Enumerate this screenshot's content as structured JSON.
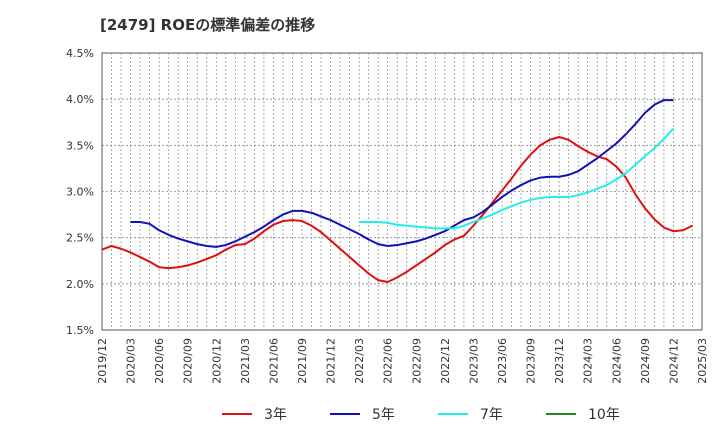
{
  "chart_data": {
    "type": "line",
    "title": "[2479]  ROEの標準偏差の推移",
    "xlabel": "",
    "ylabel": "",
    "ylim": [
      1.5,
      4.5
    ],
    "y_ticks": [
      "1.5%",
      "2.0%",
      "2.5%",
      "3.0%",
      "3.5%",
      "4.0%",
      "4.5%"
    ],
    "x_ticks": [
      "2019/12",
      "2020/03",
      "2020/06",
      "2020/09",
      "2020/12",
      "2021/03",
      "2021/06",
      "2021/09",
      "2021/12",
      "2022/03",
      "2022/06",
      "2022/09",
      "2022/12",
      "2023/03",
      "2023/06",
      "2023/09",
      "2023/12",
      "2024/03",
      "2024/06",
      "2024/09",
      "2024/12",
      "2025/03"
    ],
    "x_start": "2019/12",
    "months_span": 63,
    "grid": true,
    "legend_position": "bottom",
    "series": [
      {
        "name": "3年",
        "color": "#dd1111",
        "start_month": 0,
        "values": [
          2.37,
          2.41,
          2.38,
          2.34,
          2.29,
          2.24,
          2.18,
          2.17,
          2.18,
          2.2,
          2.23,
          2.27,
          2.31,
          2.37,
          2.42,
          2.43,
          2.49,
          2.57,
          2.64,
          2.68,
          2.69,
          2.68,
          2.63,
          2.56,
          2.47,
          2.38,
          2.29,
          2.2,
          2.11,
          2.04,
          2.02,
          2.07,
          2.13,
          2.2,
          2.27,
          2.34,
          2.42,
          2.48,
          2.52,
          2.63,
          2.75,
          2.88,
          3.01,
          3.14,
          3.28,
          3.4,
          3.5,
          3.56,
          3.59,
          3.56,
          3.49,
          3.43,
          3.38,
          3.35,
          3.27,
          3.15,
          2.97,
          2.82,
          2.7,
          2.61,
          2.57,
          2.58,
          2.63
        ]
      },
      {
        "name": "5年",
        "color": "#1111bb",
        "start_month": 3,
        "values": [
          2.67,
          2.67,
          2.65,
          2.58,
          2.53,
          2.49,
          2.46,
          2.43,
          2.41,
          2.4,
          2.42,
          2.46,
          2.51,
          2.56,
          2.62,
          2.69,
          2.75,
          2.79,
          2.79,
          2.77,
          2.73,
          2.69,
          2.64,
          2.59,
          2.54,
          2.48,
          2.43,
          2.41,
          2.42,
          2.44,
          2.46,
          2.49,
          2.53,
          2.57,
          2.63,
          2.69,
          2.72,
          2.78,
          2.86,
          2.94,
          3.01,
          3.07,
          3.12,
          3.15,
          3.16,
          3.16,
          3.18,
          3.22,
          3.29,
          3.36,
          3.44,
          3.52,
          3.62,
          3.73,
          3.85,
          3.94,
          3.99,
          3.99
        ]
      },
      {
        "name": "7年",
        "color": "#22eeee",
        "start_month": 27,
        "values": [
          2.67,
          2.67,
          2.67,
          2.66,
          2.64,
          2.63,
          2.62,
          2.61,
          2.6,
          2.6,
          2.6,
          2.63,
          2.67,
          2.71,
          2.75,
          2.8,
          2.84,
          2.88,
          2.91,
          2.93,
          2.94,
          2.94,
          2.94,
          2.96,
          2.99,
          3.03,
          3.07,
          3.13,
          3.2,
          3.29,
          3.38,
          3.47,
          3.57,
          3.68
        ]
      },
      {
        "name": "10年",
        "color": "#228822",
        "start_month": 0,
        "values": []
      }
    ]
  }
}
